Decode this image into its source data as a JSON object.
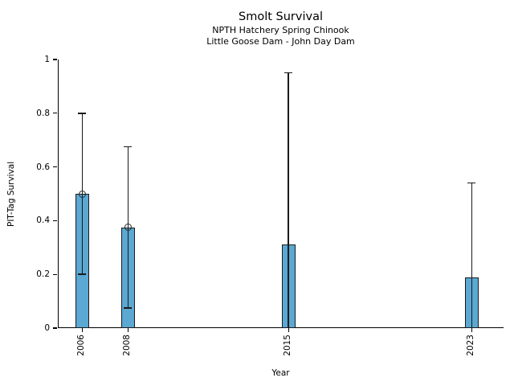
{
  "chart_data": {
    "type": "bar",
    "title": "Smolt Survival",
    "subtitle1": "NPTH Hatchery Spring Chinook",
    "subtitle2": "Little Goose Dam - John Day Dam",
    "xlabel": "Year",
    "ylabel": "PIT-Tag Survival",
    "categories": [
      "2006",
      "2008",
      "2015",
      "2023"
    ],
    "x_years": [
      2006,
      2008,
      2015,
      2023
    ],
    "values": [
      0.5,
      0.375,
      0.31,
      0.19
    ],
    "error_low": [
      0.2,
      0.075,
      0,
      0
    ],
    "error_high": [
      0.8,
      0.675,
      0.95,
      0.54
    ],
    "point_markers": [
      true,
      true,
      false,
      false
    ],
    "xlim": [
      2004.97,
      2024.42
    ],
    "ylim": [
      0,
      1
    ],
    "yticks": [
      0,
      0.2,
      0.4,
      0.6,
      0.8,
      1
    ],
    "ytick_labels": [
      "0",
      "0.2",
      "0.4",
      "0.6",
      "0.8",
      "1"
    ],
    "bar_width_years": 0.6,
    "bar_color": "#5BA8D2",
    "bar_edge_color": "#1a1a1a",
    "error_color": "#1a1a1a",
    "grid": false,
    "legend": null
  }
}
